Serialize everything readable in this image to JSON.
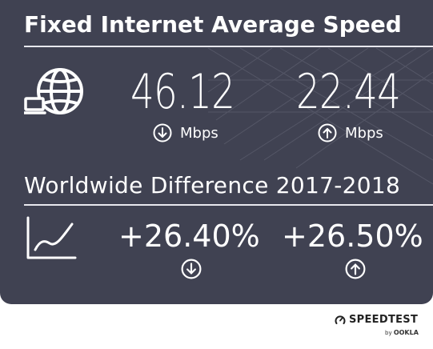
{
  "card": {
    "title": "Fixed Internet Average Speed",
    "download_value": "46.12",
    "upload_value": "22.44",
    "download_unit": "Mbps",
    "upload_unit": "Mbps",
    "subtitle": "Worldwide Difference 2017-2018",
    "download_change": "+26.40%",
    "upload_change": "+26.50%"
  },
  "icons": {
    "globe": "globe-laptop-icon",
    "chart": "line-chart-icon",
    "download": "arrow-down-circle-icon",
    "upload": "arrow-up-circle-icon",
    "brand": "speedometer-icon"
  },
  "brand": {
    "name": "SPEEDTEST",
    "by": "by",
    "company": "OOKLA"
  },
  "colors": {
    "card_background": "#404252",
    "text": "#ffffff"
  }
}
